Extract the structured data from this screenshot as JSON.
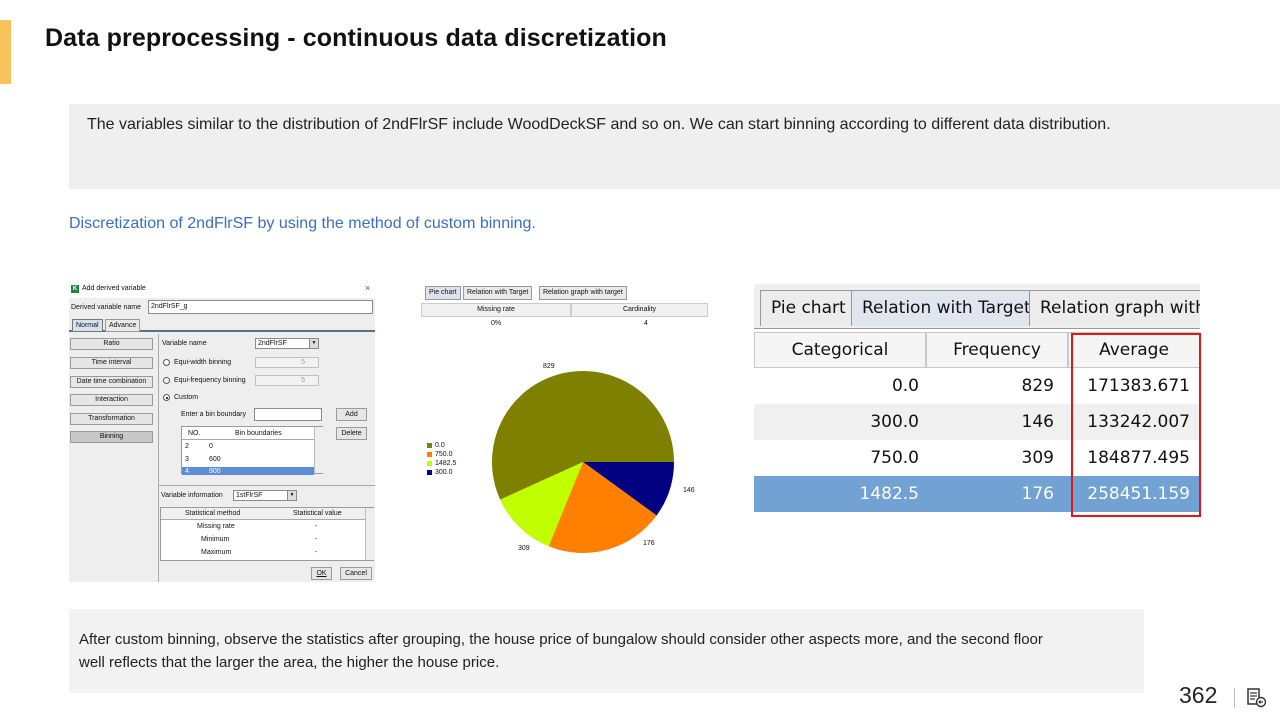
{
  "page": {
    "title": "Data preprocessing - continuous data discretization",
    "description": "The variables similar to the distribution of 2ndFlrSF include WoodDeckSF and so on. We can start binning according to different data distribution.",
    "subheading": "Discretization of 2ndFlrSF by using the method of custom binning.",
    "note_line1": "After custom binning, observe the statistics after grouping, the house price of bungalow should consider other aspects more, and the second floor",
    "note_line2": "well reflects that the larger the area, the higher the house price.",
    "page_number": "362",
    "accent_color": "#f7c45a",
    "link_color": "#3b6fbf"
  },
  "dialog": {
    "logo": "K",
    "title": "Add derived variable",
    "close": "×",
    "name_label": "Derived variable name",
    "name_value": "2ndFlrSF_g",
    "tabs": [
      "Normal",
      "Advance"
    ],
    "left_buttons": [
      "Ratio",
      "Time interval",
      "Date time combination",
      "Interaction",
      "Transformation",
      "Binning"
    ],
    "variable_name_label": "Variable name",
    "variable_name_value": "2ndFlrSF",
    "equi_width": "Equi-width binning",
    "equi_width_value": "5",
    "equi_freq": "Equi-frequency binning",
    "equi_freq_value": "5",
    "custom": "Custom",
    "bin_boundary_label": "Enter a bin boundary",
    "add_button": "Add",
    "delete_button": "Delete",
    "bins_headers": [
      "NO.",
      "Bin boundaries"
    ],
    "bins_rows": [
      [
        "2",
        "0"
      ],
      [
        "3",
        "600"
      ],
      [
        "4",
        "900"
      ]
    ],
    "var_info_label": "Variable information",
    "var_info_value": "1stFlrSF",
    "stat_headers": [
      "Statistical method",
      "Statistical value"
    ],
    "stat_rows": [
      [
        "Missing rate",
        "-"
      ],
      [
        "Minimum",
        "-"
      ],
      [
        "Maximum",
        "-"
      ]
    ],
    "ok_button": "OK",
    "cancel_button": "Cancel"
  },
  "pie_panel": {
    "tabs": [
      "Pie chart",
      "Relation with Target",
      "Relation graph with target"
    ],
    "headers": [
      "Missing rate",
      "Cardinality"
    ],
    "values": [
      "0%",
      "4"
    ],
    "legend": [
      "0.0",
      "750.0",
      "1482.5",
      "300.0"
    ],
    "slice_labels": [
      "829",
      "146",
      "176",
      "309"
    ],
    "colors": [
      "#7f7f00",
      "#ff8000",
      "#bfff00",
      "#000080"
    ]
  },
  "chart_data": {
    "type": "pie",
    "categories": [
      "0.0",
      "300.0",
      "750.0",
      "1482.5"
    ],
    "values": [
      829,
      146,
      309,
      176
    ]
  },
  "table_panel": {
    "tabs": [
      "Pie chart",
      "Relation with Target",
      "Relation graph with t"
    ],
    "headers": [
      "Categorical variable",
      "Frequency",
      "Average"
    ],
    "rows": [
      [
        "0.0",
        "829",
        "171383.671"
      ],
      [
        "300.0",
        "146",
        "133242.007"
      ],
      [
        "750.0",
        "309",
        "184877.495"
      ],
      [
        "1482.5",
        "176",
        "258451.159"
      ]
    ],
    "highlight_color": "#e0161b",
    "selected_row_color": "#72a1d3"
  }
}
